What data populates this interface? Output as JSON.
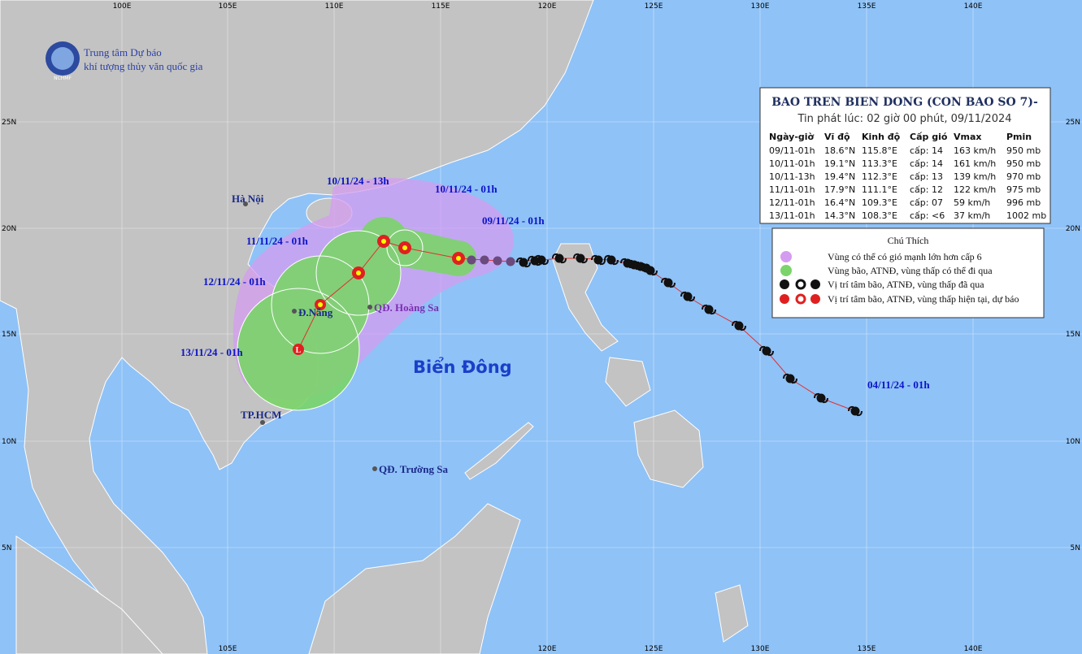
{
  "logo": {
    "line1": "Trung tâm Dự báo",
    "line2": "khí tượng thủy văn quốc gia",
    "badge": "NCHMF"
  },
  "lon_top": [
    "100E",
    "105E",
    "110E",
    "115E",
    "120E",
    "125E",
    "130E",
    "135E",
    "140E"
  ],
  "lon_bottom": [
    "105E",
    "120E",
    "125E",
    "130E",
    "135E",
    "140E"
  ],
  "lat_left": [
    "25N",
    "20N",
    "15N",
    "10N",
    "5N"
  ],
  "lat_right": [
    "25N",
    "20N",
    "15N",
    "10N",
    "5N"
  ],
  "table": {
    "title": "BAO TREN BIEN DONG (CON BAO SO 7)-",
    "subtitle": "Tin phát lúc: 02 giờ 00 phút, 09/11/2024",
    "header": [
      "Ngày-giờ",
      "Vĩ độ",
      "Kinh độ",
      "Cấp gió",
      "Vmax",
      "Pmin"
    ],
    "rows": [
      [
        "09/11-01h",
        "18.6°N",
        "115.8°E",
        "cấp: 14",
        "163 km/h",
        "950 mb"
      ],
      [
        "10/11-01h",
        "19.1°N",
        "113.3°E",
        "cấp: 14",
        "161 km/h",
        "950 mb"
      ],
      [
        "10/11-13h",
        "19.4°N",
        "112.3°E",
        "cấp: 13",
        "139 km/h",
        "970 mb"
      ],
      [
        "11/11-01h",
        "17.9°N",
        "111.1°E",
        "cấp: 12",
        "122 km/h",
        "975 mb"
      ],
      [
        "12/11-01h",
        "16.4°N",
        "109.3°E",
        "cấp: 07",
        "59 km/h",
        "996 mb"
      ],
      [
        "13/11-01h",
        "14.3°N",
        "108.3°E",
        "cấp: <6",
        "37 km/h",
        "1002 mb"
      ]
    ]
  },
  "legend": {
    "title": "Chú Thích",
    "items": [
      "Vùng có thể có gió mạnh lớn hơn cấp 6",
      "Vùng bão, ATNĐ, vùng thấp có thể đi qua",
      "Vị trí tâm bão, ATNĐ, vùng thấp đã qua",
      "Vị trí tâm bão, ATNĐ, vùng thấp hiện tại, dự báo"
    ]
  },
  "places": {
    "hanoi": "Hà Nội",
    "danang": "Đ.Nẵng",
    "hoangsa": "QĐ. Hoàng Sa",
    "hcm": "TP.HCM",
    "truongsa": "QĐ. Trường Sa",
    "sea": "Biển Đông"
  },
  "times": [
    "10/11/24 - 13h",
    "10/11/24 - 01h",
    "09/11/24 - 01h",
    "11/11/24 - 01h",
    "12/11/24 - 01h",
    "13/11/24 - 01h",
    "04/11/24 - 01h"
  ]
}
